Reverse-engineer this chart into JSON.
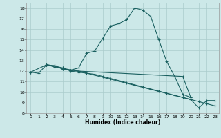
{
  "xlabel": "Humidex (Indice chaleur)",
  "bg_color": "#cce8e8",
  "grid_color": "#aacccc",
  "line_color": "#1a6060",
  "xlim": [
    -0.5,
    23.5
  ],
  "ylim": [
    8,
    18.5
  ],
  "yticks": [
    8,
    9,
    10,
    11,
    12,
    13,
    14,
    15,
    16,
    17,
    18
  ],
  "xticks": [
    0,
    1,
    2,
    3,
    4,
    5,
    6,
    7,
    8,
    9,
    10,
    11,
    12,
    13,
    14,
    15,
    16,
    17,
    18,
    19,
    20,
    21,
    22,
    23
  ],
  "lines": [
    {
      "x": [
        0,
        1,
        2,
        3,
        4,
        5,
        6,
        7,
        8,
        9,
        10,
        11,
        12,
        13,
        14,
        15,
        16,
        17,
        18,
        19,
        20
      ],
      "y": [
        11.9,
        11.8,
        12.6,
        12.5,
        12.2,
        12.1,
        12.3,
        13.7,
        13.9,
        15.1,
        16.3,
        16.5,
        16.9,
        18.0,
        17.8,
        17.2,
        15.0,
        12.9,
        11.5,
        9.8,
        9.5
      ]
    },
    {
      "x": [
        2,
        3,
        4,
        5,
        6,
        19,
        20
      ],
      "y": [
        12.6,
        12.4,
        12.3,
        12.1,
        12.0,
        11.5,
        9.5
      ]
    },
    {
      "x": [
        2,
        3,
        4,
        5,
        6,
        20,
        21,
        22,
        23
      ],
      "y": [
        12.6,
        12.5,
        12.2,
        12.1,
        12.0,
        9.3,
        8.5,
        9.2,
        9.2
      ]
    },
    {
      "x": [
        0,
        2,
        3,
        4,
        5,
        6,
        7,
        8,
        9,
        10,
        11,
        12,
        13,
        14,
        15,
        16,
        17,
        18,
        19,
        20,
        21,
        22,
        23
      ],
      "y": [
        11.9,
        12.6,
        12.5,
        12.3,
        12.0,
        11.9,
        11.8,
        11.7,
        11.5,
        11.3,
        11.1,
        10.9,
        10.7,
        10.5,
        10.3,
        10.1,
        9.9,
        9.7,
        9.5,
        9.3,
        9.1,
        8.9,
        8.7
      ]
    }
  ]
}
